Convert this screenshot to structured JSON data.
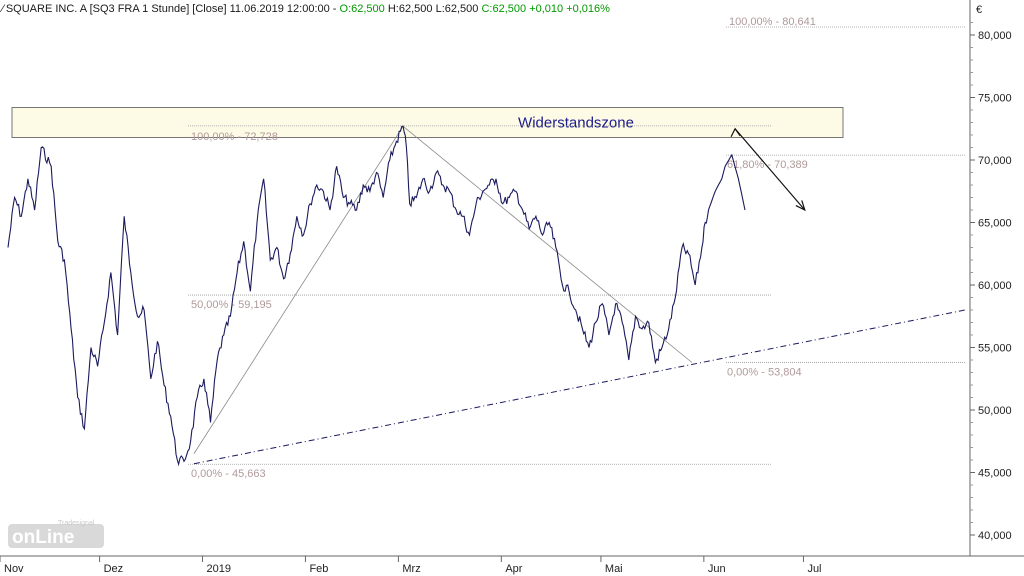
{
  "header": {
    "chart_icon": "line-chart-icon",
    "instrument": "SQUARE INC. A [SQ3 FRA  1 Stunde] [Close]",
    "datetime": "11.06.2019 12:00:00",
    "open": "O:62,500",
    "high": "H:62,500",
    "low": "L:62,500",
    "close": "C:62,500",
    "change": "+0,010",
    "change_pct": "+0,016%"
  },
  "logo": {
    "name": "Tradesignal online",
    "icon": "tradesignal-online-logo"
  },
  "colors": {
    "price_line": "#1a1a5e",
    "fib_text": "#b09a9a",
    "fib_line": "#9a9a9a",
    "zone_fill": "#fdfbe6",
    "zone_text": "#1a1a8c",
    "header_green": "#009900"
  },
  "chart_data": {
    "type": "line",
    "title": "SQUARE INC. A [SQ3 FRA  1 Stunde] [Close]",
    "currency_label": "€",
    "ylim": [
      38,
      82.5
    ],
    "y_ticks": [
      "40,000",
      "45,000",
      "50,000",
      "55,000",
      "60,000",
      "65,000",
      "70,000",
      "75,000",
      "80,000"
    ],
    "y_tick_values": [
      40,
      45,
      50,
      55,
      60,
      65,
      70,
      75,
      80
    ],
    "x_ticks": [
      "Nov",
      "Dez",
      "2019",
      "Feb",
      "Mrz",
      "Apr",
      "Mai",
      "Jun",
      "Jul"
    ],
    "x_tick_days": [
      0,
      30,
      61,
      92,
      120,
      151,
      181,
      212,
      242
    ],
    "xlim_days": [
      0,
      285
    ],
    "series": [
      {
        "name": "SQ3 FRA Close",
        "x_days": [
          0,
          2,
          4,
          6,
          8,
          10,
          13,
          15,
          17,
          19,
          21,
          23,
          25,
          27,
          29,
          31,
          33,
          35,
          37,
          39,
          41,
          43,
          45,
          47,
          49,
          51,
          53,
          55,
          57,
          59,
          61,
          63,
          65,
          67,
          69,
          71,
          73,
          75,
          77,
          79,
          81,
          83,
          85,
          87,
          89,
          91,
          93,
          95,
          97,
          99,
          101,
          103,
          105,
          107,
          109,
          111,
          113,
          115,
          117,
          119,
          120,
          121,
          123,
          125,
          127,
          129,
          131,
          133,
          135,
          137,
          139,
          141,
          143,
          145,
          147,
          149,
          151,
          153,
          155,
          157,
          159,
          161,
          163,
          165,
          167,
          169,
          171,
          173,
          175,
          177,
          179,
          181,
          183,
          185,
          187,
          189,
          191,
          193,
          195,
          197,
          199,
          201,
          203,
          205,
          207,
          209,
          210,
          211,
          213,
          215,
          216,
          218,
          220,
          222
        ],
        "values": [
          63,
          67,
          65.5,
          68.5,
          66,
          71,
          69.5,
          63.5,
          62,
          56.5,
          51,
          48.5,
          55,
          53.5,
          57,
          61,
          56,
          65.5,
          61,
          57.5,
          58,
          52.5,
          55.5,
          52,
          49.5,
          46,
          45.9,
          47.5,
          51,
          52.5,
          49,
          54,
          56,
          57.5,
          61,
          63.5,
          59.5,
          65,
          68.5,
          62,
          63,
          60.5,
          62.5,
          65.5,
          64,
          66.5,
          68,
          67.5,
          66,
          69.5,
          67,
          66.5,
          66,
          68,
          67.5,
          69,
          67,
          70,
          71.5,
          72.7,
          71,
          66.5,
          67,
          68.5,
          67.5,
          69,
          68,
          67.5,
          66,
          65.5,
          64,
          66.5,
          67.5,
          68,
          68.5,
          66.5,
          67,
          67.5,
          66,
          64.5,
          65.5,
          64,
          65,
          63,
          60,
          59.5,
          58,
          56.5,
          55,
          57,
          58.5,
          56,
          58.5,
          57,
          54,
          57.5,
          56.5,
          57,
          53.8,
          55,
          56.5,
          59,
          63,
          62.5,
          60,
          63,
          65,
          66,
          67.5,
          68.5,
          69.5,
          70.4,
          68.5,
          66
        ]
      }
    ],
    "fib_levels": [
      {
        "label": "100,00% - 80,641",
        "value": 80.641
      },
      {
        "label": "100,00% - 72,728",
        "value": 72.728
      },
      {
        "label": "61,80% - 70,389",
        "value": 70.389
      },
      {
        "label": "50,00% - 59,195",
        "value": 59.195
      },
      {
        "label": "0,00% - 53,804",
        "value": 53.804
      },
      {
        "label": "0,00% - 45,663",
        "value": 45.663
      }
    ],
    "resistance_zone": {
      "label": "Widerstandszone",
      "from": 71.8,
      "to": 74.2
    },
    "trendline": {
      "from": {
        "day": 56,
        "value": 45.7
      },
      "to": {
        "day": 285,
        "value": 58.0
      }
    },
    "projection_arrow": {
      "from": {
        "day": 219,
        "value": 72.5
      },
      "to": {
        "day": 240,
        "value": 66.0
      }
    },
    "swing_lines": [
      {
        "from": {
          "day": 56,
          "value": 46.5
        },
        "to": {
          "day": 119,
          "value": 72.7
        }
      },
      {
        "from": {
          "day": 119,
          "value": 72.7
        },
        "to": {
          "day": 206,
          "value": 53.8
        }
      }
    ]
  }
}
